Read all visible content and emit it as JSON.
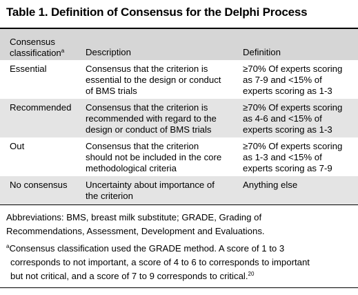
{
  "title": "Table 1. Definition of Consensus for the Delphi Process",
  "headers": {
    "classification_line1": "Consensus",
    "classification_line2": "classification",
    "classification_sup": "a",
    "description": "Description",
    "definition": "Definition"
  },
  "rows": [
    {
      "classification": "Essential",
      "description": [
        "Consensus that the criterion is",
        "essential to the design or conduct",
        "of BMS trials"
      ],
      "definition": [
        "≥70% Of experts scoring",
        "as 7-9 and <15% of",
        "experts scoring as 1-3"
      ]
    },
    {
      "classification": "Recommended",
      "description": [
        "Consensus that the criterion is",
        "recommended with regard to the",
        "design or conduct of BMS trials"
      ],
      "definition": [
        "≥70% Of experts scoring",
        "as 4-6 and <15% of",
        "experts scoring as 1-3"
      ]
    },
    {
      "classification": "Out",
      "description": [
        "Consensus that the criterion",
        "should not be included in the core",
        "methodological criteria"
      ],
      "definition": [
        "≥70% Of experts scoring",
        "as 1-3 and <15% of",
        "experts scoring as 7-9"
      ]
    },
    {
      "classification": "No consensus",
      "description": [
        "Uncertainty about importance of",
        "the criterion"
      ],
      "definition": [
        "Anything else"
      ]
    }
  ],
  "abbreviations": [
    "Abbreviations: BMS, breast milk substitute; GRADE, Grading of",
    "Recommendations, Assessment, Development and Evaluations."
  ],
  "footnote": {
    "marker": "a",
    "lines": [
      "Consensus classification used the GRADE method. A score of 1 to 3",
      "corresponds to not important, a score of 4 to 6 to corresponds to important",
      "but not critical, and a score of 7 to 9 corresponds to critical."
    ],
    "ref": "20"
  }
}
